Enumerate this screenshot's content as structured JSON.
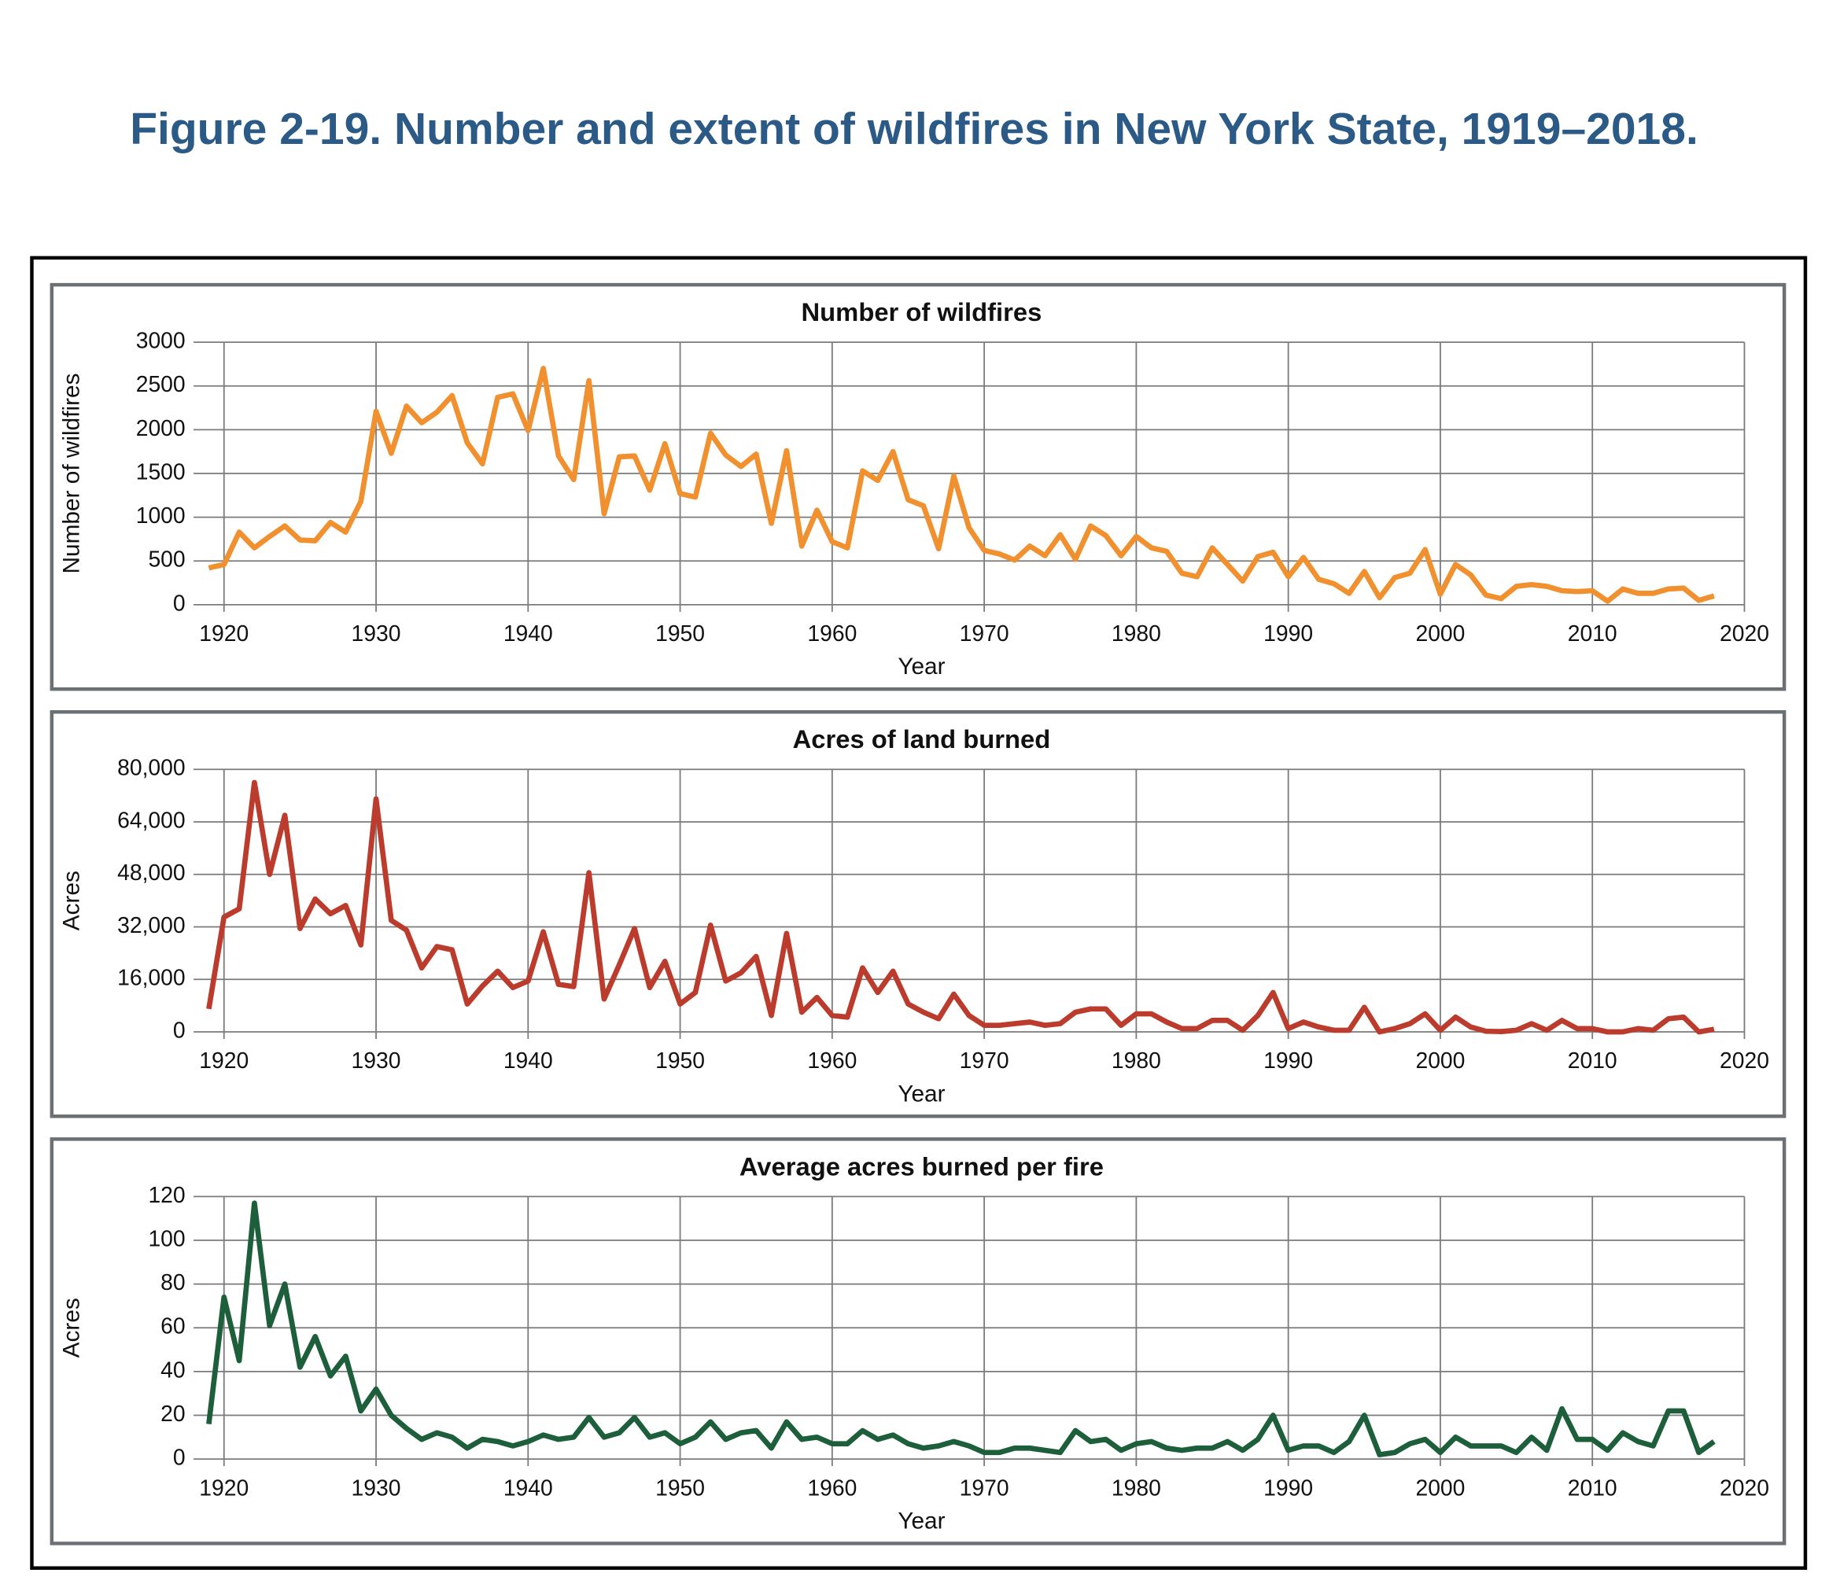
{
  "title": "Figure 2-19. Number and extent of wildfires in New York State, 1919–2018.",
  "chart_data": [
    {
      "type": "line",
      "title": "Number of wildfires",
      "xlabel": "Year",
      "ylabel": "Number of wildfires",
      "color": "#f0902f",
      "xlim": [
        1918,
        2020
      ],
      "xticks": [
        1920,
        1930,
        1940,
        1950,
        1960,
        1970,
        1980,
        1990,
        2000,
        2010,
        2020
      ],
      "ylim": [
        0,
        3000
      ],
      "yticks": [
        0,
        500,
        1000,
        1500,
        2000,
        2500,
        3000
      ],
      "grid": true,
      "x": [
        1919,
        1920,
        1921,
        1922,
        1923,
        1924,
        1925,
        1926,
        1927,
        1928,
        1929,
        1930,
        1931,
        1932,
        1933,
        1934,
        1935,
        1936,
        1937,
        1938,
        1939,
        1940,
        1941,
        1942,
        1943,
        1944,
        1945,
        1946,
        1947,
        1948,
        1949,
        1950,
        1951,
        1952,
        1953,
        1954,
        1955,
        1956,
        1957,
        1958,
        1959,
        1960,
        1961,
        1962,
        1963,
        1964,
        1965,
        1966,
        1967,
        1968,
        1969,
        1970,
        1971,
        1972,
        1973,
        1974,
        1975,
        1976,
        1977,
        1978,
        1979,
        1980,
        1981,
        1982,
        1983,
        1984,
        1985,
        1986,
        1987,
        1988,
        1989,
        1990,
        1991,
        1992,
        1993,
        1994,
        1995,
        1996,
        1997,
        1998,
        1999,
        2000,
        2001,
        2002,
        2003,
        2004,
        2005,
        2006,
        2007,
        2008,
        2009,
        2010,
        2011,
        2012,
        2013,
        2014,
        2015,
        2016,
        2017,
        2018
      ],
      "values": [
        420,
        460,
        830,
        650,
        780,
        900,
        740,
        730,
        940,
        830,
        1180,
        2210,
        1730,
        2270,
        2080,
        2200,
        2390,
        1850,
        1610,
        2370,
        2410,
        1990,
        2700,
        1700,
        1430,
        2560,
        1040,
        1690,
        1700,
        1310,
        1840,
        1270,
        1230,
        1960,
        1710,
        1580,
        1720,
        930,
        1760,
        670,
        1080,
        720,
        650,
        1530,
        1420,
        1750,
        1200,
        1130,
        640,
        1470,
        880,
        620,
        580,
        510,
        670,
        560,
        800,
        520,
        900,
        790,
        560,
        780,
        650,
        610,
        360,
        320,
        650,
        460,
        270,
        550,
        600,
        320,
        540,
        290,
        240,
        130,
        380,
        80,
        310,
        360,
        630,
        120,
        460,
        340,
        110,
        70,
        210,
        230,
        210,
        160,
        150,
        160,
        40,
        180,
        130,
        130,
        180,
        190,
        50,
        100
      ]
    },
    {
      "type": "line",
      "title": "Acres of land burned",
      "xlabel": "Year",
      "ylabel": "Acres",
      "color": "#bb3b2c",
      "xlim": [
        1918,
        2020
      ],
      "xticks": [
        1920,
        1930,
        1940,
        1950,
        1960,
        1970,
        1980,
        1990,
        2000,
        2010,
        2020
      ],
      "ylim": [
        0,
        80000
      ],
      "yticks": [
        0,
        {
          "value": 16000,
          "label": "16,000"
        },
        {
          "value": 32000,
          "label": "32,000"
        },
        {
          "value": 48000,
          "label": "48,000"
        },
        {
          "value": 64000,
          "label": "64,000"
        },
        {
          "value": 80000,
          "label": "80,000"
        }
      ],
      "grid": true,
      "x": [
        1919,
        1920,
        1921,
        1922,
        1923,
        1924,
        1925,
        1926,
        1927,
        1928,
        1929,
        1930,
        1931,
        1932,
        1933,
        1934,
        1935,
        1936,
        1937,
        1938,
        1939,
        1940,
        1941,
        1942,
        1943,
        1944,
        1945,
        1946,
        1947,
        1948,
        1949,
        1950,
        1951,
        1952,
        1953,
        1954,
        1955,
        1956,
        1957,
        1958,
        1959,
        1960,
        1961,
        1962,
        1963,
        1964,
        1965,
        1966,
        1967,
        1968,
        1969,
        1970,
        1971,
        1972,
        1973,
        1974,
        1975,
        1976,
        1977,
        1978,
        1979,
        1980,
        1981,
        1982,
        1983,
        1984,
        1985,
        1986,
        1987,
        1988,
        1989,
        1990,
        1991,
        1992,
        1993,
        1994,
        1995,
        1996,
        1997,
        1998,
        1999,
        2000,
        2001,
        2002,
        2003,
        2004,
        2005,
        2006,
        2007,
        2008,
        2009,
        2010,
        2011,
        2012,
        2013,
        2014,
        2015,
        2016,
        2017,
        2018
      ],
      "values": [
        7000,
        35000,
        37500,
        76000,
        48000,
        66000,
        31500,
        40500,
        36000,
        38500,
        26500,
        71000,
        34000,
        31000,
        19500,
        26000,
        25000,
        8500,
        14000,
        18500,
        13500,
        15500,
        30500,
        14500,
        13800,
        48500,
        10000,
        20500,
        31500,
        13500,
        21500,
        8500,
        12000,
        32500,
        15500,
        18000,
        23000,
        5000,
        30000,
        6000,
        10500,
        5000,
        4500,
        19500,
        12000,
        18500,
        8500,
        6000,
        4000,
        11500,
        5000,
        2000,
        2000,
        2500,
        3000,
        2000,
        2500,
        6000,
        7000,
        7000,
        2000,
        5500,
        5500,
        3000,
        1000,
        1000,
        3500,
        3500,
        500,
        5000,
        12000,
        1000,
        3000,
        1500,
        500,
        500,
        7500,
        0,
        1000,
        2500,
        5500,
        500,
        4500,
        1500,
        200,
        100,
        500,
        2500,
        500,
        3500,
        1000,
        1000,
        0,
        0,
        1000,
        500,
        4000,
        4500,
        0,
        800
      ]
    },
    {
      "type": "line",
      "title": "Average acres burned per fire",
      "xlabel": "Year",
      "ylabel": "Acres",
      "color": "#1d5e3b",
      "xlim": [
        1918,
        2020
      ],
      "xticks": [
        1920,
        1930,
        1940,
        1950,
        1960,
        1970,
        1980,
        1990,
        2000,
        2010,
        2020
      ],
      "ylim": [
        0,
        120
      ],
      "yticks": [
        0,
        20,
        40,
        60,
        80,
        100,
        120
      ],
      "grid": true,
      "x": [
        1919,
        1920,
        1921,
        1922,
        1923,
        1924,
        1925,
        1926,
        1927,
        1928,
        1929,
        1930,
        1931,
        1932,
        1933,
        1934,
        1935,
        1936,
        1937,
        1938,
        1939,
        1940,
        1941,
        1942,
        1943,
        1944,
        1945,
        1946,
        1947,
        1948,
        1949,
        1950,
        1951,
        1952,
        1953,
        1954,
        1955,
        1956,
        1957,
        1958,
        1959,
        1960,
        1961,
        1962,
        1963,
        1964,
        1965,
        1966,
        1967,
        1968,
        1969,
        1970,
        1971,
        1972,
        1973,
        1974,
        1975,
        1976,
        1977,
        1978,
        1979,
        1980,
        1981,
        1982,
        1983,
        1984,
        1985,
        1986,
        1987,
        1988,
        1989,
        1990,
        1991,
        1992,
        1993,
        1994,
        1995,
        1996,
        1997,
        1998,
        1999,
        2000,
        2001,
        2002,
        2003,
        2004,
        2005,
        2006,
        2007,
        2008,
        2009,
        2010,
        2011,
        2012,
        2013,
        2014,
        2015,
        2016,
        2017,
        2018
      ],
      "values": [
        16,
        74,
        45,
        117,
        61,
        80,
        42,
        56,
        38,
        47,
        22,
        32,
        20,
        14,
        9,
        12,
        10,
        5,
        9,
        8,
        6,
        8,
        11,
        9,
        10,
        19,
        10,
        12,
        19,
        10,
        12,
        7,
        10,
        17,
        9,
        12,
        13,
        5,
        17,
        9,
        10,
        7,
        7,
        13,
        9,
        11,
        7,
        5,
        6,
        8,
        6,
        3,
        3,
        5,
        5,
        4,
        3,
        13,
        8,
        9,
        4,
        7,
        8,
        5,
        4,
        5,
        5,
        8,
        4,
        9,
        20,
        4,
        6,
        6,
        3,
        8,
        20,
        2,
        3,
        7,
        9,
        3,
        10,
        6,
        6,
        6,
        3,
        10,
        4,
        23,
        9,
        9,
        4,
        12,
        8,
        6,
        22,
        22,
        3,
        8
      ]
    }
  ]
}
